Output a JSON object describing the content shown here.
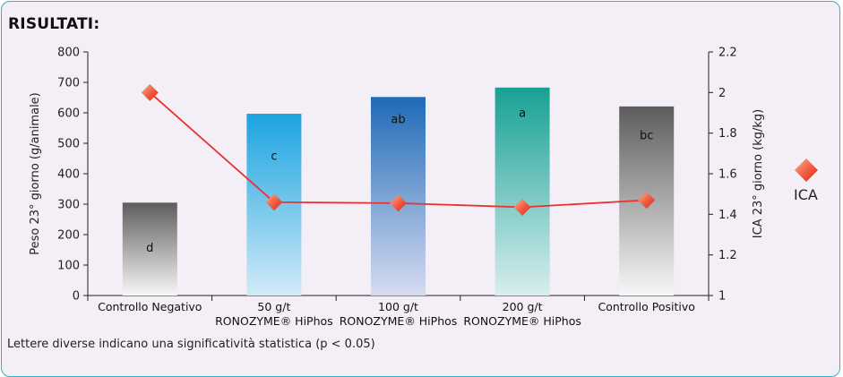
{
  "header": {
    "title": "RISULTATI:"
  },
  "footnote": "Lettere diverse indicano una significatività statistica (p < 0.05)",
  "colors": {
    "panel_border": "#2fb3c6",
    "line": "#e8322f",
    "marker": "#f05a3c"
  },
  "chart_data": {
    "type": "bar",
    "categories": [
      [
        "Controllo Negativo"
      ],
      [
        "50 g/t",
        "RONOZYME® HiPhos"
      ],
      [
        "100 g/t",
        "RONOZYME® HiPhos"
      ],
      [
        "200 g/t",
        "RONOZYME® HiPhos"
      ],
      [
        "Controllo Positivo"
      ]
    ],
    "ylabel": "Peso 23° giorno (g/animale)",
    "y2label": "ICA 23° giorno (kg/kg)",
    "ylim": [
      0,
      800
    ],
    "y2lim": [
      1,
      2.2
    ],
    "yticks": [
      "0",
      "100",
      "200",
      "300",
      "400",
      "500",
      "600",
      "700",
      "800"
    ],
    "y2ticks": [
      "1",
      "1.2",
      "1.4",
      "1.6",
      "1.8",
      "2",
      "2.2"
    ],
    "series": [
      {
        "type": "bar",
        "values": [
          305,
          597,
          652,
          683,
          621
        ],
        "labels": [
          "d",
          "c",
          "ab",
          "a",
          "bc"
        ]
      },
      {
        "name": "ICA",
        "type": "line",
        "axis": "right",
        "values": [
          2.0,
          1.46,
          1.455,
          1.435,
          1.47
        ]
      }
    ],
    "legend": {
      "position": "right",
      "entries": [
        "ICA"
      ]
    }
  }
}
